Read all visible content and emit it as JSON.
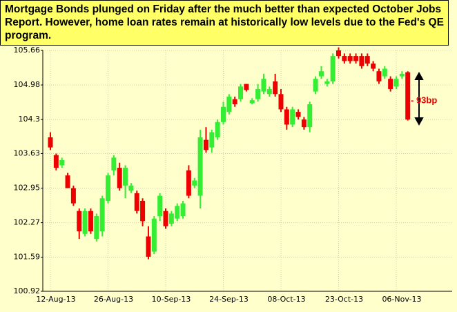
{
  "chart_data": {
    "type": "candlestick",
    "title": "Mortgage Bonds plunged on Friday after the much better than expected October Jobs Report.  However, home loan rates remain at historically low levels due to the Fed's QE program.",
    "annotation": "- 93bp",
    "categories": [
      "12-Aug-13",
      null,
      null,
      null,
      null,
      null,
      null,
      null,
      null,
      null,
      "26-Aug-13",
      null,
      null,
      null,
      null,
      null,
      null,
      null,
      null,
      null,
      "10-Sep-13",
      null,
      null,
      null,
      null,
      null,
      null,
      null,
      null,
      null,
      "24-Sep-13",
      null,
      null,
      null,
      null,
      null,
      null,
      null,
      null,
      null,
      "08-Oct-13",
      null,
      null,
      null,
      null,
      null,
      null,
      null,
      null,
      null,
      "23-Oct-13",
      null,
      null,
      null,
      null,
      null,
      null,
      null,
      null,
      null,
      "06-Nov-13",
      null,
      null
    ],
    "open": [
      103.95,
      103.6,
      103.4,
      103.2,
      102.95,
      102.5,
      102.05,
      102.5,
      101.95,
      102.1,
      102.7,
      103.3,
      103.35,
      103.0,
      102.9,
      102.85,
      102.7,
      102.0,
      101.7,
      102.4,
      102.5,
      102.25,
      102.35,
      102.4,
      103.3,
      103.0,
      102.8,
      103.9,
      103.75,
      103.95,
      104.25,
      104.45,
      104.7,
      104.7,
      105.0,
      104.62,
      104.7,
      104.85,
      104.8,
      105.05,
      104.8,
      104.5,
      104.2,
      104.45,
      104.3,
      104.15,
      104.85,
      105.15,
      105.0,
      105.05,
      105.66,
      105.55,
      105.55,
      105.55,
      105.55,
      105.55,
      105.4,
      105.25,
      105.15,
      105.1,
      104.95,
      105.15,
      105.23
    ],
    "high": [
      104.05,
      103.63,
      103.55,
      103.25,
      103.0,
      102.55,
      102.55,
      102.55,
      102.45,
      102.8,
      103.25,
      103.6,
      103.45,
      103.4,
      103.05,
      102.9,
      102.75,
      102.2,
      102.4,
      102.85,
      102.55,
      102.5,
      102.65,
      102.7,
      103.4,
      103.15,
      104.1,
      104.15,
      104.1,
      104.3,
      104.65,
      104.8,
      104.75,
      105.0,
      105.0,
      104.72,
      105.0,
      105.2,
      104.95,
      105.2,
      104.9,
      104.55,
      104.55,
      104.5,
      104.35,
      104.65,
      105.15,
      105.35,
      105.1,
      105.6,
      105.72,
      105.6,
      105.6,
      105.6,
      105.6,
      105.6,
      105.45,
      105.3,
      105.35,
      105.15,
      105.15,
      105.25,
      105.25
    ],
    "low": [
      103.7,
      103.3,
      103.35,
      102.95,
      102.6,
      101.95,
      102.0,
      102.05,
      101.9,
      102.0,
      102.65,
      103.2,
      102.9,
      102.75,
      102.85,
      102.45,
      102.2,
      101.55,
      101.65,
      102.3,
      102.15,
      102.2,
      102.3,
      102.35,
      102.75,
      102.95,
      102.55,
      103.65,
      103.65,
      103.9,
      104.2,
      104.4,
      104.55,
      104.65,
      104.85,
      104.6,
      104.65,
      104.8,
      104.75,
      104.75,
      104.45,
      104.1,
      104.15,
      104.3,
      104.1,
      104.05,
      104.8,
      105.1,
      104.95,
      105.0,
      105.5,
      105.4,
      105.4,
      105.4,
      105.3,
      105.35,
      105.25,
      105.0,
      105.1,
      104.85,
      104.9,
      105.1,
      104.28
    ],
    "close": [
      103.75,
      103.35,
      103.5,
      102.95,
      102.65,
      102.1,
      102.5,
      102.1,
      102.4,
      102.75,
      103.2,
      103.55,
      102.95,
      103.35,
      103.0,
      102.5,
      102.3,
      101.6,
      102.35,
      102.8,
      102.2,
      102.45,
      102.6,
      102.65,
      102.8,
      103.1,
      103.95,
      103.7,
      104.05,
      104.25,
      104.55,
      104.75,
      104.6,
      104.95,
      104.88,
      104.68,
      104.9,
      105.1,
      104.9,
      104.8,
      104.5,
      104.2,
      104.5,
      104.35,
      104.15,
      104.6,
      105.1,
      105.25,
      105.05,
      105.55,
      105.55,
      105.45,
      105.45,
      105.45,
      105.35,
      105.4,
      105.3,
      105.05,
      105.3,
      104.9,
      105.1,
      105.2,
      104.3
    ],
    "up_color": "#33ee33",
    "down_color": "#ee0000",
    "ylim": [
      100.92,
      105.66
    ],
    "yticks": [
      100.92,
      101.59,
      102.27,
      102.95,
      103.63,
      104.3,
      104.98,
      105.66
    ],
    "grid": true
  }
}
